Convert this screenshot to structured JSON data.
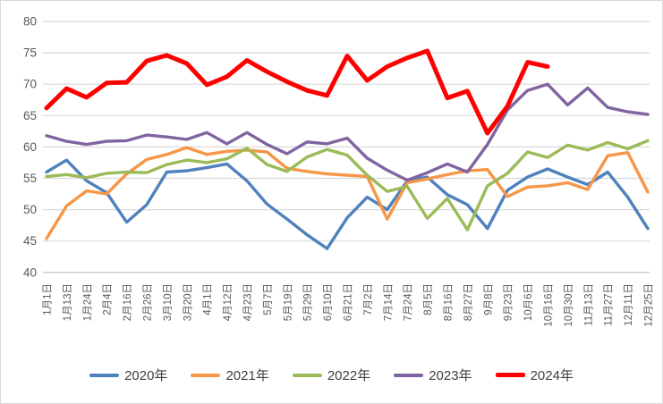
{
  "chart_data": {
    "type": "line",
    "title": "",
    "xlabel": "",
    "ylabel": "",
    "ylim": [
      40,
      80
    ],
    "yticks": [
      40,
      45,
      50,
      55,
      60,
      65,
      70,
      75,
      80
    ],
    "grid": true,
    "legend_position": "bottom",
    "categories": [
      "1月1日",
      "1月13日",
      "1月24日",
      "2月4日",
      "2月16日",
      "2月26日",
      "3月10日",
      "3月20日",
      "4月1日",
      "4月12日",
      "4月23日",
      "5月7日",
      "5月19日",
      "5月29日",
      "6月10日",
      "6月21日",
      "7月2日",
      "7月14日",
      "7月24日",
      "8月5日",
      "8月16日",
      "8月27日",
      "9月8日",
      "9月23日",
      "10月6日",
      "10月16日",
      "10月30日",
      "11月13日",
      "11月27日",
      "12月11日",
      "12月25日"
    ],
    "series": [
      {
        "name": "2020年",
        "color": "#4F81BD",
        "width": 3.4,
        "values": [
          56.0,
          57.9,
          54.6,
          52.7,
          48.0,
          50.8,
          56.0,
          56.2,
          56.7,
          57.3,
          54.6,
          50.9,
          48.5,
          46.0,
          43.8,
          48.7,
          52.0,
          50.0,
          54.6,
          55.2,
          52.4,
          50.8,
          47.0,
          53.1,
          55.2,
          56.5,
          55.2,
          54.0,
          56.0,
          52.0,
          47.0
        ]
      },
      {
        "name": "2021年",
        "color": "#F79646",
        "width": 3.4,
        "values": [
          45.4,
          50.6,
          53.0,
          52.5,
          55.7,
          58.0,
          58.8,
          59.9,
          58.8,
          59.3,
          59.5,
          59.2,
          56.6,
          56.1,
          55.7,
          55.5,
          55.3,
          48.5,
          54.3,
          54.9,
          55.6,
          56.2,
          56.4,
          52.1,
          53.6,
          53.8,
          54.3,
          53.2,
          58.6,
          59.1,
          52.8
        ]
      },
      {
        "name": "2022年",
        "color": "#9BBB59",
        "width": 3.4,
        "values": [
          55.3,
          55.6,
          55.1,
          55.8,
          56.0,
          55.9,
          57.2,
          57.9,
          57.5,
          58.1,
          59.8,
          57.2,
          56.1,
          58.4,
          59.6,
          58.7,
          55.5,
          52.9,
          53.7,
          48.6,
          51.8,
          46.8,
          53.8,
          55.8,
          59.2,
          58.3,
          60.3,
          59.5,
          60.7,
          59.7,
          61.0
        ]
      },
      {
        "name": "2023年",
        "color": "#8064A2",
        "width": 3.4,
        "values": [
          61.8,
          60.9,
          60.4,
          60.9,
          61.0,
          61.9,
          61.6,
          61.2,
          62.3,
          60.5,
          62.3,
          60.4,
          58.9,
          60.8,
          60.5,
          61.4,
          58.2,
          56.3,
          54.7,
          55.9,
          57.3,
          56.0,
          60.4,
          65.9,
          69.0,
          70.0,
          66.7,
          69.4,
          66.3,
          65.6,
          65.2
        ]
      },
      {
        "name": "2024年",
        "color": "#FF0000",
        "width": 5,
        "values": [
          66.2,
          69.3,
          67.9,
          70.2,
          70.3,
          73.7,
          74.6,
          73.3,
          69.9,
          71.2,
          73.8,
          72.0,
          70.4,
          69.0,
          68.2,
          74.5,
          70.6,
          72.8,
          74.2,
          75.3,
          67.8,
          68.9,
          62.2,
          66.5,
          73.5,
          72.8
        ]
      }
    ]
  },
  "style": {
    "gridline_color": "#D9D9D9",
    "axis_color": "#BFBFBF",
    "tick_label_color": "#595959",
    "legend_label_color": "#404040",
    "background": "#FFFFFF"
  }
}
